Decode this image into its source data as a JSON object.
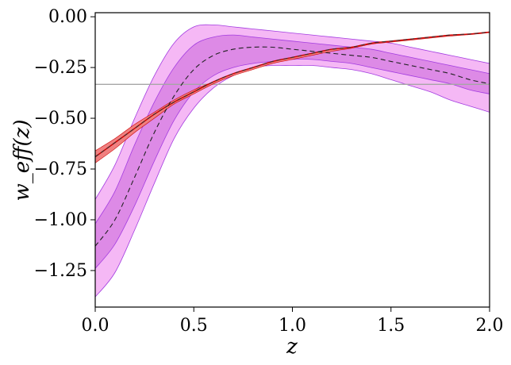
{
  "chart_data": {
    "type": "line",
    "xlabel": "z",
    "ylabel": "w_eff(z)",
    "xlim": [
      0.0,
      2.0
    ],
    "ylim": [
      -1.43,
      0.02
    ],
    "xticks": [
      "0.0",
      "0.5",
      "1.0",
      "1.5",
      "2.0"
    ],
    "yticks": [
      "0.00",
      "−0.25",
      "−0.50",
      "−0.75",
      "−1.00",
      "−1.25"
    ],
    "xtick_values": [
      0.0,
      0.5,
      1.0,
      1.5,
      2.0
    ],
    "ytick_values": [
      0.0,
      -0.25,
      -0.5,
      -0.75,
      -1.0,
      -1.25
    ],
    "colors": {
      "band_outer": "#f5b8f5",
      "band_inner": "#dd8ae6",
      "band_edge": "#a33ce0",
      "red_band": "#f08080",
      "red_line": "#cc0000",
      "reference": "#a6a6a6"
    },
    "reference_line": {
      "y": -0.333
    },
    "x": [
      0.0,
      0.1,
      0.2,
      0.3,
      0.4,
      0.5,
      0.6,
      0.7,
      0.8,
      0.9,
      1.0,
      1.1,
      1.2,
      1.3,
      1.4,
      1.5,
      1.6,
      1.7,
      1.8,
      1.9,
      2.0
    ],
    "series": [
      {
        "style": "dashed",
        "values": [
          -1.13,
          -1.0,
          -0.79,
          -0.57,
          -0.39,
          -0.26,
          -0.19,
          -0.16,
          -0.15,
          -0.15,
          -0.16,
          -0.17,
          -0.18,
          -0.19,
          -0.2,
          -0.22,
          -0.24,
          -0.26,
          -0.28,
          -0.31,
          -0.33
        ],
        "band_1sigma": {
          "upper": [
            -1.02,
            -0.86,
            -0.63,
            -0.42,
            -0.25,
            -0.14,
            -0.1,
            -0.09,
            -0.1,
            -0.11,
            -0.12,
            -0.13,
            -0.14,
            -0.15,
            -0.16,
            -0.18,
            -0.2,
            -0.22,
            -0.24,
            -0.26,
            -0.28
          ],
          "lower": [
            -1.24,
            -1.12,
            -0.93,
            -0.71,
            -0.51,
            -0.37,
            -0.29,
            -0.25,
            -0.23,
            -0.22,
            -0.21,
            -0.21,
            -0.22,
            -0.23,
            -0.25,
            -0.27,
            -0.29,
            -0.31,
            -0.33,
            -0.36,
            -0.38
          ]
        },
        "band_2sigma": {
          "upper": [
            -0.9,
            -0.73,
            -0.5,
            -0.29,
            -0.13,
            -0.05,
            -0.04,
            -0.05,
            -0.06,
            -0.07,
            -0.08,
            -0.09,
            -0.1,
            -0.11,
            -0.12,
            -0.13,
            -0.15,
            -0.17,
            -0.19,
            -0.21,
            -0.23
          ],
          "lower": [
            -1.38,
            -1.26,
            -1.05,
            -0.82,
            -0.6,
            -0.45,
            -0.35,
            -0.29,
            -0.25,
            -0.24,
            -0.24,
            -0.24,
            -0.25,
            -0.26,
            -0.28,
            -0.31,
            -0.34,
            -0.37,
            -0.41,
            -0.44,
            -0.47
          ]
        }
      },
      {
        "style": "solid",
        "values": [
          -0.69,
          -0.62,
          -0.55,
          -0.48,
          -0.42,
          -0.37,
          -0.32,
          -0.28,
          -0.25,
          -0.22,
          -0.2,
          -0.18,
          -0.16,
          -0.15,
          -0.13,
          -0.12,
          -0.11,
          -0.1,
          -0.09,
          -0.085,
          -0.075
        ],
        "band_1sigma": {
          "upper": [
            -0.66,
            -0.6,
            -0.53,
            -0.47,
            -0.41,
            -0.36,
            -0.32,
            -0.28,
            -0.25,
            -0.22,
            -0.2,
            -0.18,
            -0.16,
            -0.15,
            -0.13,
            -0.12,
            -0.11,
            -0.1,
            -0.09,
            -0.085,
            -0.075
          ],
          "lower": [
            -0.72,
            -0.65,
            -0.57,
            -0.5,
            -0.43,
            -0.38,
            -0.33,
            -0.29,
            -0.26,
            -0.23,
            -0.21,
            -0.19,
            -0.17,
            -0.155,
            -0.135,
            -0.125,
            -0.115,
            -0.105,
            -0.095,
            -0.088,
            -0.078
          ]
        }
      }
    ]
  }
}
